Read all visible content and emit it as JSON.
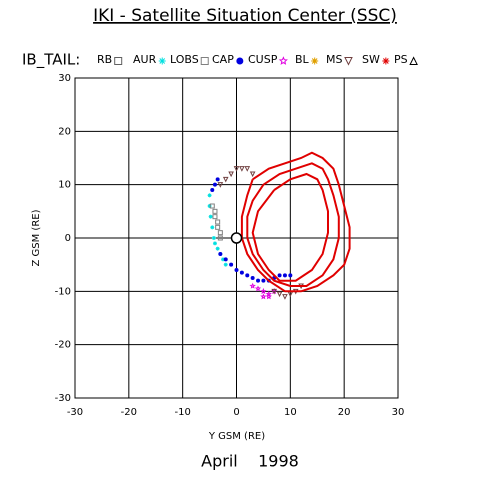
{
  "chart_data": {
    "type": "scatter",
    "title": "IKI - Satellite Situation Center (SSC)",
    "legend_title": "IB_TAIL:",
    "xlabel": "Y GSM (RE)",
    "ylabel": "Z GSM (RE)",
    "caption": "April    1998",
    "xlim": [
      -30,
      30
    ],
    "ylim": [
      -30,
      30
    ],
    "xticks": [
      -30,
      -20,
      -10,
      0,
      10,
      20,
      30
    ],
    "yticks": [
      -30,
      -20,
      -10,
      0,
      10,
      20,
      30
    ],
    "grid": true,
    "series": [
      {
        "name": "RB",
        "color": "#606060",
        "symbol": "square",
        "mode": "markers",
        "x": [],
        "values": []
      },
      {
        "name": "AUR",
        "color": "#00e0e0",
        "symbol": "asterisk",
        "mode": "markers",
        "x": [
          -5,
          -5,
          -4.8,
          -4.5,
          -4.2,
          -4,
          -3.5,
          -3,
          -2.5,
          -2
        ],
        "values": [
          8,
          6,
          4,
          2,
          0,
          -1,
          -2,
          -3,
          -4,
          -5
        ]
      },
      {
        "name": "LOBS",
        "color": "#808080",
        "symbol": "square",
        "mode": "markers",
        "x": [
          -4.5,
          -4,
          -4,
          -3.5,
          -3.5,
          -3,
          -3
        ],
        "values": [
          6,
          5,
          4,
          3,
          2,
          1,
          0
        ]
      },
      {
        "name": "CAP",
        "color": "#0000e0",
        "symbol": "dot",
        "mode": "markers",
        "x": [
          -4.5,
          -4,
          -3.5,
          -3,
          -2,
          -1,
          0,
          1,
          2,
          3,
          4,
          5,
          6,
          7,
          8,
          9,
          10
        ],
        "values": [
          9,
          10,
          11,
          -3,
          -4,
          -5,
          -6,
          -6.5,
          -7,
          -7.5,
          -8,
          -8,
          -8,
          -7.5,
          -7,
          -7,
          -7
        ]
      },
      {
        "name": "CUSP",
        "color": "#e000e0",
        "symbol": "star",
        "mode": "markers",
        "x": [
          3,
          4,
          5,
          6,
          7,
          5,
          6
        ],
        "values": [
          -9,
          -9.5,
          -10,
          -10.5,
          -10,
          -11,
          -11
        ]
      },
      {
        "name": "BL",
        "color": "#e0a000",
        "symbol": "sun",
        "mode": "markers",
        "x": [],
        "values": []
      },
      {
        "name": "MS",
        "color": "#704040",
        "symbol": "triangle-down",
        "mode": "markers",
        "x": [
          -1,
          0,
          1,
          2,
          3,
          -2,
          -3,
          7,
          8,
          9,
          10,
          11,
          12
        ],
        "values": [
          12,
          13,
          13,
          13,
          12,
          11,
          10,
          -10,
          -10.5,
          -11,
          -10.5,
          -10,
          -9
        ]
      },
      {
        "name": "SW",
        "color": "#e00000",
        "symbol": "asterisk",
        "mode": "line",
        "x": [
          3,
          6,
          9,
          12,
          14,
          16,
          18,
          19,
          20,
          21,
          21,
          20,
          18,
          15,
          12,
          9,
          6,
          4,
          2,
          1,
          1,
          2,
          3,
          null,
          5,
          8,
          11,
          14,
          16,
          17,
          18,
          19,
          19,
          18,
          16,
          13,
          10,
          7,
          5,
          3,
          2,
          2,
          3,
          5,
          null,
          7,
          10,
          13,
          15,
          16,
          17,
          17,
          16,
          14,
          11,
          8,
          6,
          4,
          3,
          4,
          7
        ],
        "values": [
          11,
          13,
          14,
          15,
          16,
          15,
          13,
          10,
          6,
          2,
          -2,
          -5,
          -7,
          -9,
          -10,
          -10,
          -8,
          -6,
          -3,
          0,
          4,
          8,
          11,
          null,
          10,
          12,
          13,
          14,
          13,
          11,
          8,
          4,
          0,
          -4,
          -7,
          -9,
          -9,
          -8,
          -6,
          -3,
          0,
          4,
          7,
          10,
          null,
          9,
          11,
          12,
          11,
          9,
          5,
          1,
          -3,
          -6,
          -8,
          -8,
          -6,
          -3,
          1,
          5,
          9
        ]
      },
      {
        "name": "PS",
        "color": "#000000",
        "symbol": "triangle",
        "mode": "markers",
        "x": [],
        "values": []
      }
    ]
  }
}
